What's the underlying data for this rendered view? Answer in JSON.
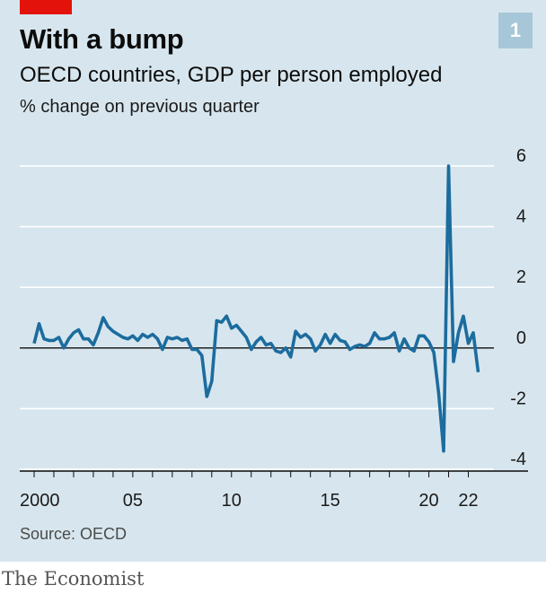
{
  "badge": "1",
  "footer": {
    "source": "Source: OECD",
    "brand": "The Economist"
  },
  "colors": {
    "line": "#1c6c9e",
    "grid": "#ffffff",
    "accent": "#e3120b",
    "background": "#d7e6ee"
  },
  "chart_data": {
    "type": "line",
    "title": "With a bump",
    "subtitle": "OECD countries, GDP per person employed",
    "ylabel": "% change on previous quarter",
    "xlabel": "",
    "ylim": [
      -4,
      6
    ],
    "yticks": [
      6,
      4,
      2,
      0,
      -2,
      -4
    ],
    "xticks": [
      {
        "value": 2000,
        "label": "2000"
      },
      {
        "value": 2005,
        "label": "05"
      },
      {
        "value": 2010,
        "label": "10"
      },
      {
        "value": 2015,
        "label": "15"
      },
      {
        "value": 2020,
        "label": "20"
      },
      {
        "value": 2022,
        "label": "22"
      }
    ],
    "grid": true,
    "series": [
      {
        "name": "GDP per person employed",
        "x_start": 2000.0,
        "x_step": 0.25,
        "values": [
          0.15,
          0.8,
          0.3,
          0.25,
          0.25,
          0.35,
          0.0,
          0.3,
          0.5,
          0.6,
          0.3,
          0.3,
          0.1,
          0.5,
          1.0,
          0.7,
          0.55,
          0.45,
          0.35,
          0.3,
          0.4,
          0.25,
          0.45,
          0.35,
          0.45,
          0.3,
          -0.05,
          0.35,
          0.3,
          0.35,
          0.25,
          0.3,
          -0.05,
          -0.05,
          -0.25,
          -1.6,
          -1.1,
          0.9,
          0.85,
          1.05,
          0.65,
          0.75,
          0.55,
          0.35,
          -0.05,
          0.2,
          0.35,
          0.1,
          0.15,
          -0.1,
          -0.15,
          0.0,
          -0.3,
          0.55,
          0.35,
          0.45,
          0.3,
          -0.1,
          0.1,
          0.45,
          0.15,
          0.45,
          0.25,
          0.2,
          -0.05,
          0.05,
          0.1,
          0.05,
          0.15,
          0.5,
          0.3,
          0.3,
          0.35,
          0.5,
          -0.1,
          0.3,
          0.0,
          -0.1,
          0.4,
          0.4,
          0.2,
          -0.15,
          -1.5,
          -3.4,
          6.0,
          -0.45,
          0.5,
          1.05,
          0.15,
          0.5,
          -0.8
        ]
      }
    ]
  }
}
